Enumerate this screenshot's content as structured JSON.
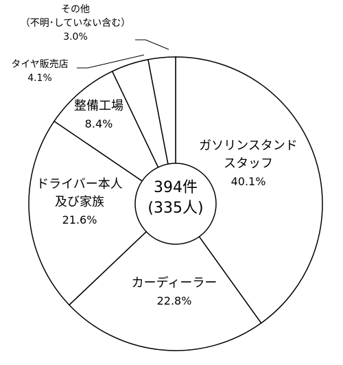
{
  "chart_data": {
    "type": "pie",
    "title": "",
    "center_label": [
      "394件",
      "(335人)"
    ],
    "slices": [
      {
        "label": [
          "ガソリンスタンド",
          "スタッフ"
        ],
        "value": 40.1,
        "value_label": "40.1%"
      },
      {
        "label": [
          "カーディーラー"
        ],
        "value": 22.8,
        "value_label": "22.8%"
      },
      {
        "label": [
          "ドライバー本人",
          "及び家族"
        ],
        "value": 21.6,
        "value_label": "21.6%"
      },
      {
        "label": [
          "整備工場"
        ],
        "value": 8.4,
        "value_label": "8.4%"
      },
      {
        "label": [
          "タイヤ販売店"
        ],
        "value": 4.1,
        "value_label": "4.1%"
      },
      {
        "label": [
          "その他",
          "（不明･していない含む）"
        ],
        "value": 3.0,
        "value_label": "3.0%"
      }
    ],
    "colors": {
      "fill": "#ffffff",
      "stroke": "#000000"
    }
  }
}
